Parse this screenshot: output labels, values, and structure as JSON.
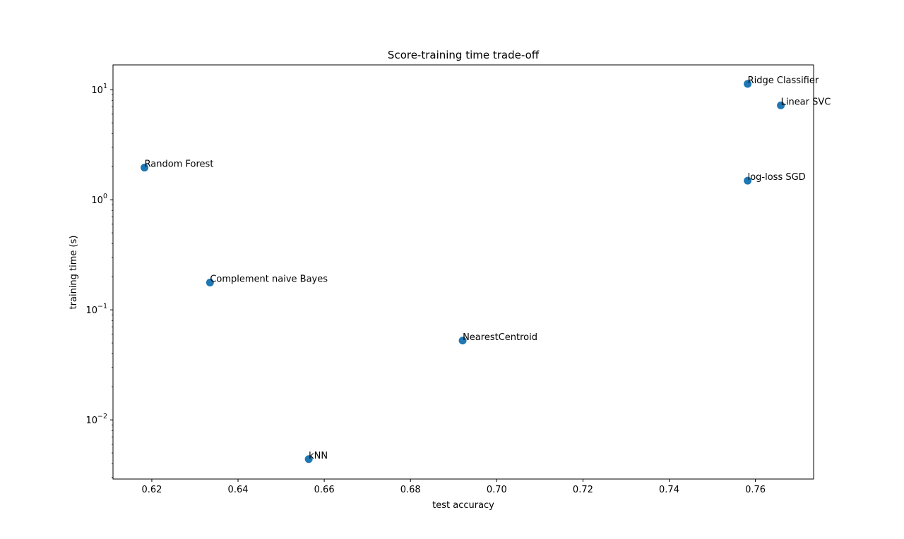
{
  "chart_data": {
    "type": "scatter",
    "title": "Score-training time trade-off",
    "xlabel": "test accuracy",
    "ylabel": "training time (s)",
    "xlim": [
      0.611,
      0.7735
    ],
    "ylim": [
      0.0029,
      16.8
    ],
    "yscale": "log",
    "grid": false,
    "marker_color": "#1f77b4",
    "x_ticks": [
      0.62,
      0.64,
      0.66,
      0.68,
      0.7,
      0.72,
      0.74,
      0.76
    ],
    "x_tick_labels": [
      "0.62",
      "0.64",
      "0.66",
      "0.68",
      "0.70",
      "0.72",
      "0.74",
      "0.76"
    ],
    "y_ticks": [
      {
        "value": 0.01,
        "base": "10",
        "exp": "−2"
      },
      {
        "value": 0.1,
        "base": "10",
        "exp": "−1"
      },
      {
        "value": 1,
        "base": "10",
        "exp": "0"
      },
      {
        "value": 10,
        "base": "10",
        "exp": "1"
      }
    ],
    "points": [
      {
        "label": "Random Forest",
        "x": 0.6183,
        "y": 1.96
      },
      {
        "label": "Complement naive Bayes",
        "x": 0.6335,
        "y": 0.177
      },
      {
        "label": "kNN",
        "x": 0.6564,
        "y": 0.0044
      },
      {
        "label": "NearestCentroid",
        "x": 0.6921,
        "y": 0.0525
      },
      {
        "label": "Ridge Classifier",
        "x": 0.7582,
        "y": 11.3
      },
      {
        "label": "Linear SVC",
        "x": 0.7659,
        "y": 7.2
      },
      {
        "label": "log-loss SGD",
        "x": 0.7582,
        "y": 1.49
      }
    ]
  }
}
